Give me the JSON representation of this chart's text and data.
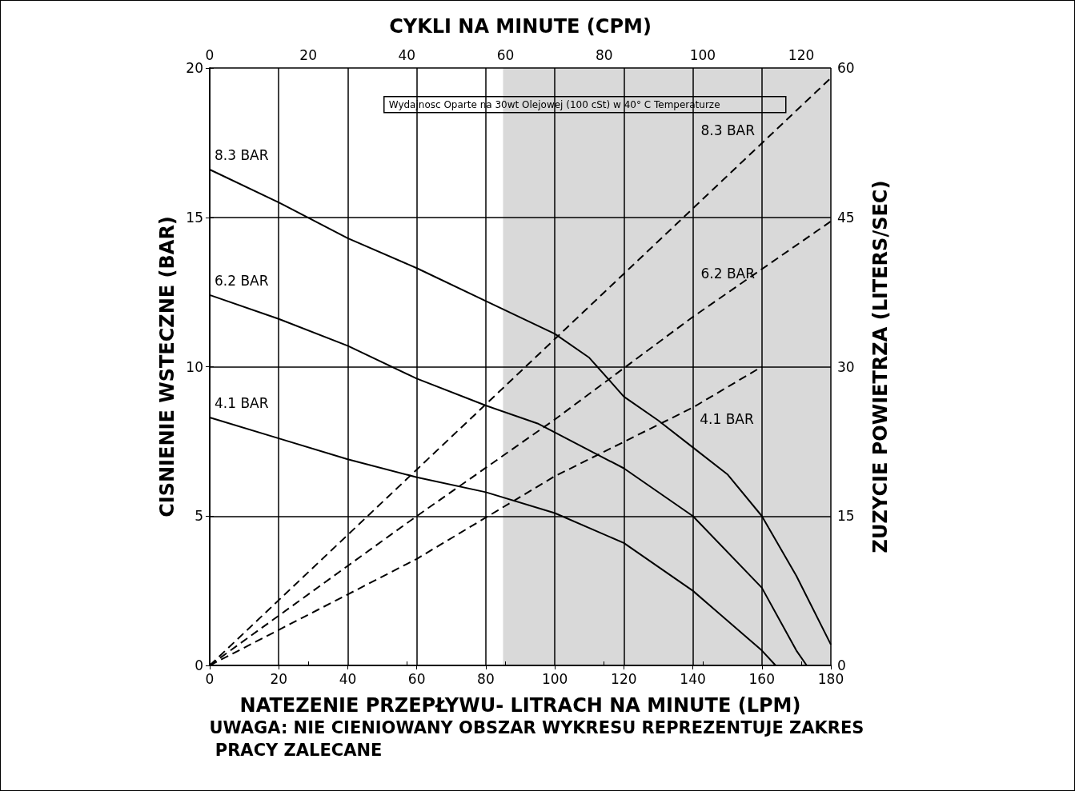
{
  "chart_data": {
    "type": "line",
    "xlabel": "NATEZENIE PRZEPŁYWU- LITRACH NA MINUTE (LPM)",
    "ylabel": "CISNIENIE WSTECZNE (BAR)",
    "y2label": "ZUZYCIE POWIETRZA (LITERS/SEC)",
    "x2label": "CYKLI NA MINUTE (CPM)",
    "xlim": [
      0,
      180
    ],
    "xticks": [
      0,
      20,
      40,
      60,
      80,
      100,
      120,
      140,
      160,
      180
    ],
    "ylim": [
      0,
      20
    ],
    "yticks": [
      0,
      5,
      10,
      15,
      20
    ],
    "y2lim": [
      0,
      60
    ],
    "y2ticks": [
      0,
      15,
      30,
      45,
      60
    ],
    "x2lim": [
      0,
      126
    ],
    "x2ticks": [
      0,
      20,
      40,
      60,
      80,
      100,
      120
    ],
    "grid": true,
    "legend": false,
    "marker": "none",
    "bands": [
      {
        "axis": "x",
        "from": 85,
        "to": 180,
        "color": "#d9d9d9"
      }
    ],
    "annotations": [
      "Wydajnosc Oparte na 30wt Olejowej (100 cSt) w 40° C Temperaturze",
      "UWAGA: NIE CIENIOWANY OBSZAR WYKRESU REPREZENTUJE ZAKRES PRACY ZALECANE"
    ],
    "series": [
      {
        "name": "8.3 BAR",
        "color": "#000000",
        "line_style": "solid",
        "x": [
          0,
          20,
          40,
          60,
          80,
          100,
          110,
          120,
          130,
          140,
          150,
          160,
          170,
          180
        ],
        "values": [
          16.6,
          15.5,
          14.3,
          13.3,
          12.2,
          11.1,
          10.3,
          9.0,
          8.2,
          7.3,
          6.4,
          5.0,
          3.0,
          0.7
        ]
      },
      {
        "name": "6.2 BAR",
        "color": "#000000",
        "line_style": "solid",
        "x": [
          0,
          20,
          40,
          60,
          80,
          95,
          100,
          120,
          140,
          160,
          170,
          173
        ],
        "values": [
          12.4,
          11.6,
          10.7,
          9.6,
          8.7,
          8.1,
          7.8,
          6.6,
          5.0,
          2.6,
          0.5,
          0
        ]
      },
      {
        "name": "4.1 BAR",
        "color": "#000000",
        "line_style": "solid",
        "x": [
          0,
          20,
          40,
          60,
          80,
          100,
          120,
          140,
          160,
          164
        ],
        "values": [
          8.3,
          7.6,
          6.9,
          6.3,
          5.8,
          5.1,
          4.1,
          2.5,
          0.5,
          0
        ]
      },
      {
        "name": "8.3 BAR",
        "color": "#000000",
        "line_style": "dashed",
        "axis": "y2",
        "x": [
          0,
          180
        ],
        "values": [
          0,
          59
        ]
      },
      {
        "name": "6.2 BAR",
        "color": "#000000",
        "line_style": "dashed",
        "axis": "y2",
        "x": [
          0,
          60,
          100,
          140,
          180
        ],
        "values": [
          0,
          15,
          24.7,
          35,
          44.6
        ]
      },
      {
        "name": "4.1 BAR",
        "color": "#000000",
        "line_style": "dashed",
        "axis": "y2",
        "x": [
          0,
          60,
          100,
          140,
          160
        ],
        "values": [
          0,
          10.7,
          19,
          25.9,
          30
        ]
      }
    ]
  }
}
